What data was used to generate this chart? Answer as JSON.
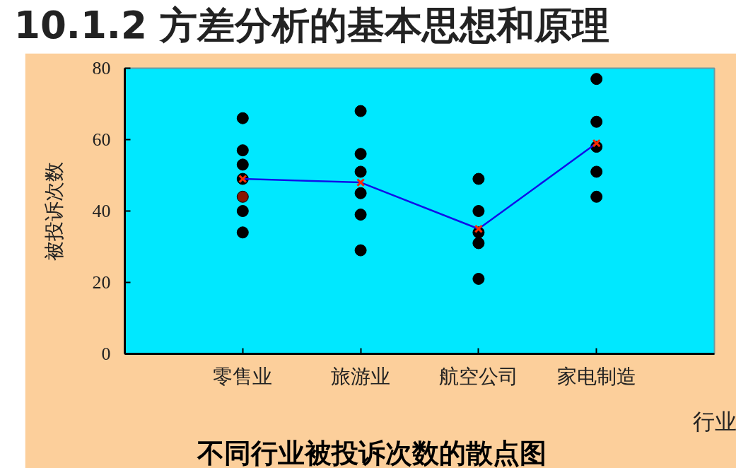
{
  "chart_data": {
    "type": "scatter",
    "title": "10.1.2 方差分析的基本思想和原理",
    "subtitle": "不同行业被投诉次数的散点图",
    "xlabel": "行业",
    "ylabel": "被投诉次数",
    "categories": [
      "零售业",
      "旅游业",
      "航空公司",
      "家电制造"
    ],
    "ylim": [
      0,
      80
    ],
    "yticks": [
      0,
      20,
      40,
      60,
      80
    ],
    "grid": false,
    "series": [
      {
        "marker": "circle",
        "color": "#000000",
        "x": [
          "零售业",
          "零售业",
          "零售业",
          "零售业",
          "零售业",
          "零售业",
          "零售业",
          "旅游业",
          "旅游业",
          "旅游业",
          "旅游业",
          "旅游业",
          "旅游业",
          "航空公司",
          "航空公司",
          "航空公司",
          "航空公司",
          "航空公司",
          "家电制造",
          "家电制造",
          "家电制造",
          "家电制造",
          "家电制造"
        ],
        "values": [
          57,
          66,
          49,
          40,
          34,
          53,
          44,
          68,
          39,
          29,
          45,
          56,
          51,
          31,
          49,
          21,
          34,
          40,
          44,
          51,
          65,
          77,
          58
        ],
        "colors": [
          "#000000",
          "#000000",
          "#000000",
          "#000000",
          "#000000",
          "#000000",
          "#8b1500",
          "#000000",
          "#000000",
          "#000000",
          "#000000",
          "#000000",
          "#000000",
          "#000000",
          "#000000",
          "#000000",
          "#000000",
          "#000000",
          "#000000",
          "#000000",
          "#000000",
          "#000000",
          "#000000"
        ]
      },
      {
        "type": "line",
        "marker": "none",
        "color": "#1010e8",
        "values": [
          49,
          48,
          35,
          59
        ]
      },
      {
        "type": "scatter",
        "marker": "cross",
        "color": "#ff2a00",
        "values": [
          49,
          48,
          35,
          59
        ]
      }
    ]
  }
}
